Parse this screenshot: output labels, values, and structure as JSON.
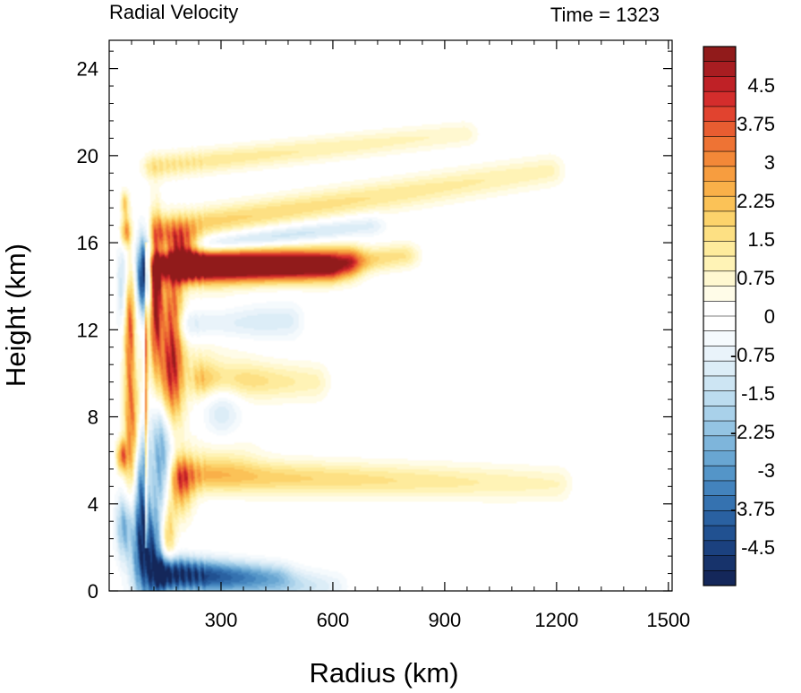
{
  "chart_data": {
    "type": "heatmap",
    "title": "Radial Velocity",
    "subtitle": "Time = 1323",
    "xlabel": "Radius (km)",
    "ylabel": "Height (km)",
    "xlim": [
      0,
      1510
    ],
    "ylim": [
      0,
      25.3
    ],
    "x_ticks": [
      {
        "value": 300,
        "label": "300"
      },
      {
        "value": 600,
        "label": "600"
      },
      {
        "value": 900,
        "label": "900"
      },
      {
        "value": 1200,
        "label": "1200"
      },
      {
        "value": 1500,
        "label": "1500"
      }
    ],
    "y_ticks": [
      {
        "value": 0,
        "label": "0"
      },
      {
        "value": 4,
        "label": "4"
      },
      {
        "value": 8,
        "label": "8"
      },
      {
        "value": 12,
        "label": "12"
      },
      {
        "value": 16,
        "label": "16"
      },
      {
        "value": 20,
        "label": "20"
      },
      {
        "value": 24,
        "label": "24"
      }
    ],
    "colorbar": {
      "levels_min": -5.25,
      "levels_max": 5.25,
      "level_step": 0.25,
      "labels": [
        "4.5",
        "3.75",
        "3",
        "2.25",
        "1.5",
        "0.75",
        "0",
        "-0.75",
        "-1.5",
        "-2.25",
        "-3",
        "-3.75",
        "-4.5"
      ],
      "label_values": [
        4.5,
        3.75,
        3,
        2.25,
        1.5,
        0.75,
        0,
        -0.75,
        -1.5,
        -2.25,
        -3,
        -3.75,
        -4.5
      ],
      "colors_high_to_low": [
        "#911b1b",
        "#a81d21",
        "#bf2126",
        "#d42d2c",
        "#e1432f",
        "#e85d31",
        "#ee7334",
        "#f38838",
        "#f79d3f",
        "#f9b049",
        "#fbc257",
        "#fcd36b",
        "#fde083",
        "#feeb9c",
        "#fff3b6",
        "#fff8d0",
        "#fffce8",
        "#ffffff",
        "#ffffff",
        "#f5fafd",
        "#e9f3fa",
        "#dcedf7",
        "#cde5f3",
        "#bcdcef",
        "#a9d1ea",
        "#94c4e3",
        "#7eb5db",
        "#69a6d2",
        "#5495c8",
        "#4383bd",
        "#3572b0",
        "#2a61a1",
        "#215191",
        "#1b417f",
        "#17336b",
        "#14275a"
      ]
    },
    "features": [
      {
        "kind": "blob",
        "r": 62,
        "z": 8.5,
        "sr": 14,
        "sz": 3.0,
        "v": 3.8
      },
      {
        "kind": "blob",
        "r": 58,
        "z": 12.5,
        "sr": 12,
        "sz": 1.5,
        "v": 2.5
      },
      {
        "kind": "blob",
        "r": 35,
        "z": 6.2,
        "sr": 10,
        "sz": 0.5,
        "v": 3.2
      },
      {
        "kind": "blob",
        "r": 45,
        "z": 16.5,
        "sr": 10,
        "sz": 0.5,
        "v": 3.0
      },
      {
        "kind": "blob",
        "r": 42,
        "z": 17.8,
        "sr": 8,
        "sz": 0.4,
        "v": 2.0
      },
      {
        "kind": "blob",
        "r": 92,
        "z": 14.5,
        "sr": 13,
        "sz": 1.2,
        "v": -5.3
      },
      {
        "kind": "blob",
        "r": 70,
        "z": 11.0,
        "sr": 8,
        "sz": 2.0,
        "v": -2.0
      },
      {
        "kind": "blob",
        "r": 125,
        "z": 13.5,
        "sr": 12,
        "sz": 2.2,
        "v": 5.3
      },
      {
        "kind": "blob",
        "r": 170,
        "z": 12.5,
        "sr": 20,
        "sz": 2.0,
        "v": 3.5
      },
      {
        "kind": "blob",
        "r": 195,
        "z": 15.8,
        "sr": 30,
        "sz": 0.6,
        "v": 4.0
      },
      {
        "kind": "blob",
        "r": 160,
        "z": 9.5,
        "sr": 25,
        "sz": 1.5,
        "v": 3.5
      },
      {
        "kind": "blob",
        "r": 105,
        "z": 1.5,
        "sr": 30,
        "sz": 1.5,
        "v": -4.5
      },
      {
        "kind": "blob",
        "r": 85,
        "z": 4.5,
        "sr": 14,
        "sz": 2.0,
        "v": -3.5
      },
      {
        "kind": "blob",
        "r": 140,
        "z": 6.5,
        "sr": 20,
        "sz": 2.5,
        "v": -3.0
      },
      {
        "kind": "blob",
        "r": 155,
        "z": 2.5,
        "sr": 15,
        "sz": 1.2,
        "v": 3.0
      },
      {
        "kind": "blob",
        "r": 190,
        "z": 4.8,
        "sr": 25,
        "sz": 1.0,
        "v": 2.5
      },
      {
        "kind": "blob",
        "r": 40,
        "z": 3.0,
        "sr": 15,
        "sz": 1.0,
        "v": -2.5
      },
      {
        "kind": "blob",
        "r": 35,
        "z": 14.0,
        "sr": 10,
        "sz": 1.5,
        "v": -1.5
      },
      {
        "kind": "blob",
        "r": 300,
        "z": 8.5,
        "sr": 40,
        "sz": 1.5,
        "v": -1.5
      },
      {
        "kind": "blob",
        "r": 270,
        "z": 11.0,
        "sr": 70,
        "sz": 2.0,
        "v": 0.9
      },
      {
        "kind": "blob",
        "r": 300,
        "z": 6.3,
        "sr": 60,
        "sz": 0.8,
        "v": 1.0
      },
      {
        "kind": "band",
        "r0": 140,
        "r1": 640,
        "z0": 15.1,
        "z1": 15.1,
        "w": 0.55,
        "peak": 4.5,
        "end": 2.5
      },
      {
        "kind": "band",
        "r0": 650,
        "r1": 790,
        "z0": 15.1,
        "z1": 15.4,
        "w": 0.4,
        "peak": 2.0,
        "end": 1.5
      },
      {
        "kind": "band",
        "r0": 140,
        "r1": 700,
        "z0": 15.6,
        "z1": 16.8,
        "w": 0.35,
        "peak": -2.5,
        "end": -1.0
      },
      {
        "kind": "band",
        "r0": 140,
        "r1": 1180,
        "z0": 16.6,
        "z1": 19.3,
        "w": 0.5,
        "peak": 2.0,
        "end": 1.0
      },
      {
        "kind": "band",
        "r0": 200,
        "r1": 480,
        "z0": 12.2,
        "z1": 12.4,
        "w": 0.6,
        "peak": -1.6,
        "end": -1.0
      },
      {
        "kind": "band",
        "r0": 200,
        "r1": 590,
        "z0": 14.8,
        "z1": 14.9,
        "w": 0.45,
        "peak": 4.0,
        "end": 3.8
      },
      {
        "kind": "band",
        "r0": 200,
        "r1": 1200,
        "z0": 5.3,
        "z1": 4.9,
        "w": 0.55,
        "peak": 2.2,
        "end": 0.9
      },
      {
        "kind": "band",
        "r0": 150,
        "r1": 600,
        "z0": 0.6,
        "z1": 0.2,
        "w": 0.5,
        "peak": -4.5,
        "end": -0.8
      },
      {
        "kind": "band",
        "r0": 150,
        "r1": 450,
        "z0": 1.2,
        "z1": 0.8,
        "w": 0.4,
        "peak": -2.0,
        "end": -1.0
      },
      {
        "kind": "band",
        "r0": 120,
        "r1": 950,
        "z0": 19.5,
        "z1": 21.0,
        "w": 0.4,
        "peak": 1.5,
        "end": 0.8
      },
      {
        "kind": "band",
        "r0": 250,
        "r1": 550,
        "z0": 9.7,
        "z1": 9.6,
        "w": 0.6,
        "peak": 2.0,
        "end": 1.0
      }
    ],
    "thin_line": {
      "r": 100,
      "z0": 2.0,
      "z1": 16.0,
      "v": 5.3
    }
  }
}
